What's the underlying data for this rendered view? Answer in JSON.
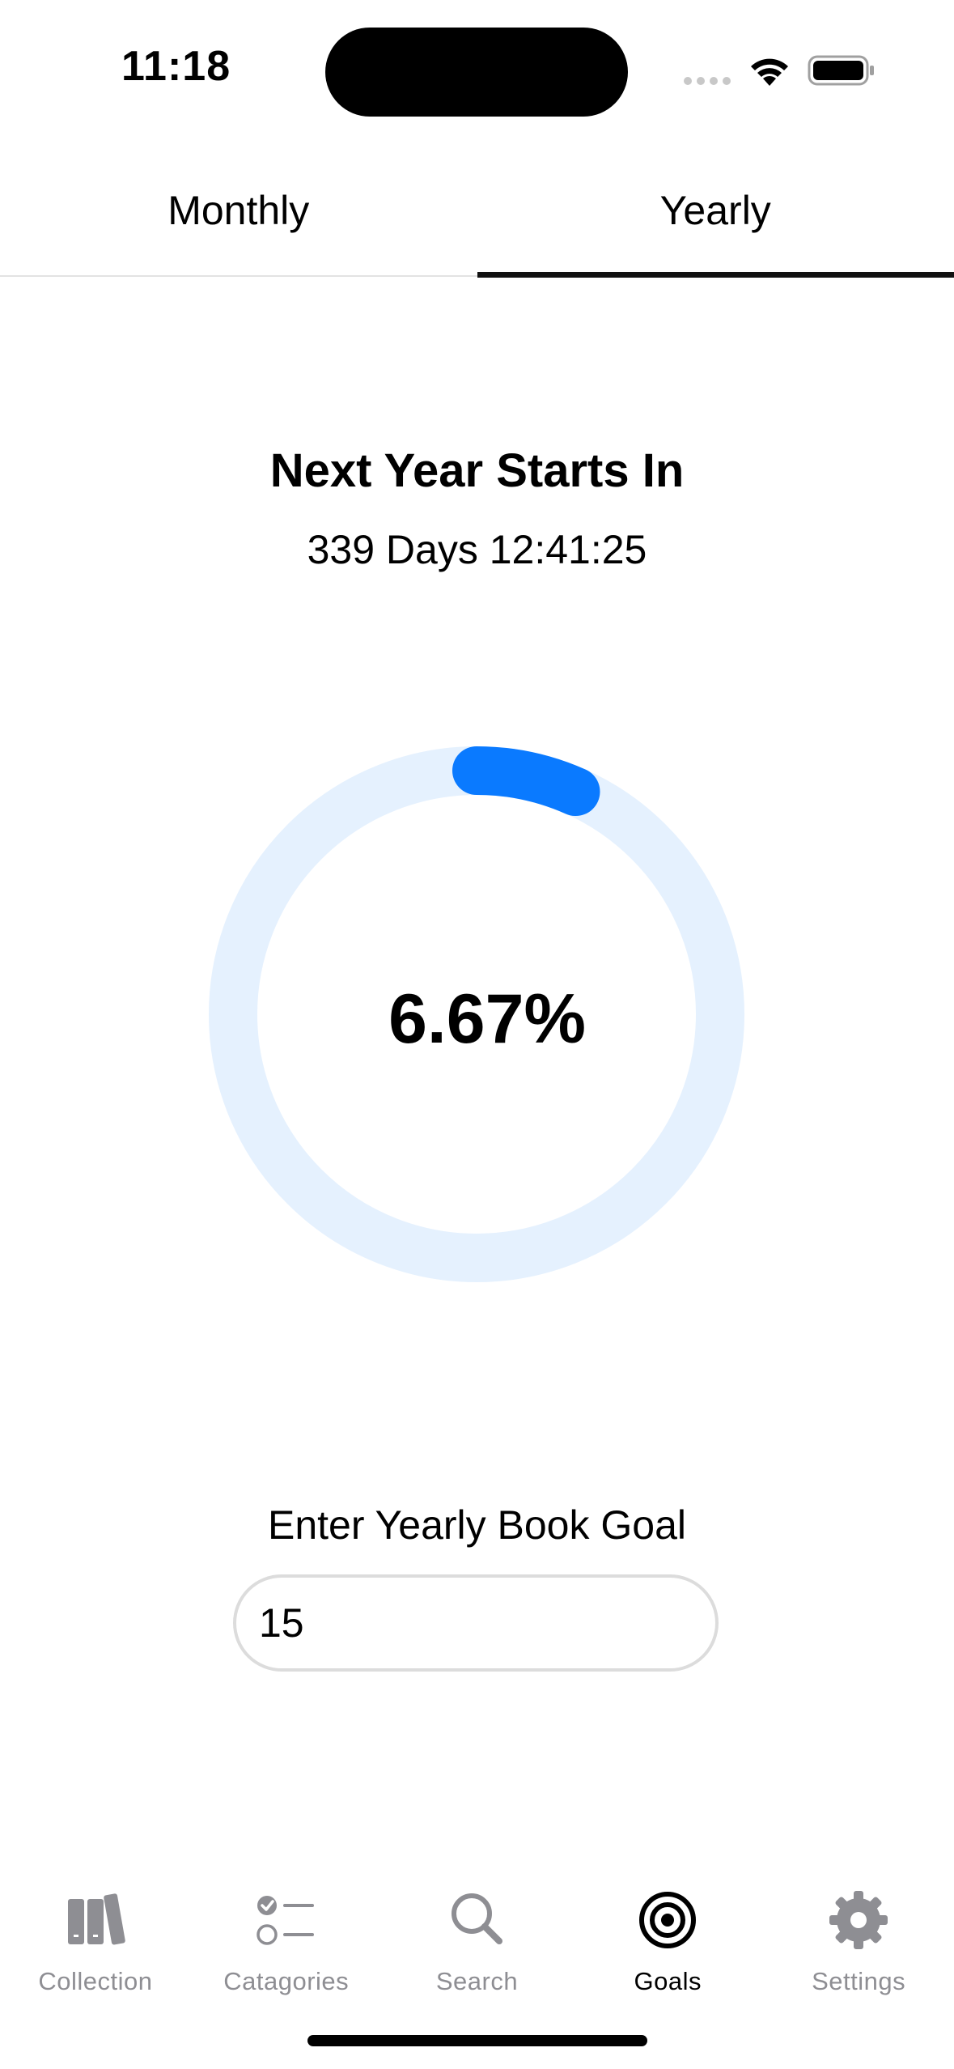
{
  "status_bar": {
    "time": "11:18"
  },
  "tabs": [
    {
      "label": "Monthly",
      "selected": false
    },
    {
      "label": "Yearly",
      "selected": true
    }
  ],
  "countdown": {
    "title": "Next Year Starts In",
    "value": "339 Days 12:41:25"
  },
  "progress": {
    "label": "6.67%",
    "fraction": 0.0667,
    "track_color": "#e5f1fe",
    "fill_color": "#0a7aff"
  },
  "goal": {
    "label": "Enter Yearly Book Goal",
    "value": "15"
  },
  "tab_bar": {
    "items": [
      {
        "label": "Collection",
        "icon": "books-icon",
        "active": false
      },
      {
        "label": "Catagories",
        "icon": "checklist-icon",
        "active": false
      },
      {
        "label": "Search",
        "icon": "search-icon",
        "active": false
      },
      {
        "label": "Goals",
        "icon": "target-icon",
        "active": true
      },
      {
        "label": "Settings",
        "icon": "gear-icon",
        "active": false
      }
    ],
    "active_color": "#000000",
    "inactive_color": "#8e8e93"
  }
}
